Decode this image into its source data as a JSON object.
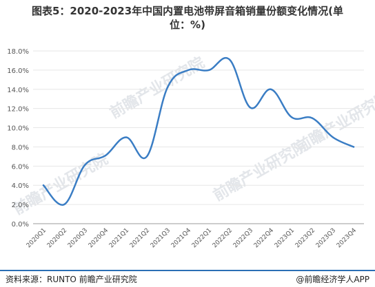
{
  "title_line1": "图表5：2020-2023年中国内置电池带屏音箱销量份额变化情况(单",
  "title_line2": "位：%)",
  "source": "资料来源：RUNTO 前瞻产业研究院",
  "brand": "@前瞻经济学人APP",
  "watermark": "前瞻产业研究院",
  "colors": {
    "line": "#3a7dc4",
    "grid": "#e6e6e6",
    "axis": "#999999",
    "footer_rule": "#2a6fb4"
  },
  "chart_data": {
    "type": "line",
    "title": "图表5：2020-2023年中国内置电池带屏音箱销量份额变化情况(单位：%)",
    "categories": [
      "2020Q1",
      "2020Q2",
      "2020Q3",
      "2020Q4",
      "2021Q1",
      "2021Q2",
      "2021Q3",
      "2021Q4",
      "2022Q1",
      "2022Q2",
      "2022Q3",
      "2022Q4",
      "2023Q1",
      "2023Q2",
      "2023Q3",
      "2023Q4"
    ],
    "series": [
      {
        "values": [
          4.0,
          2.0,
          6.1,
          7.1,
          9.0,
          7.0,
          14.2,
          16.0,
          16.0,
          17.1,
          12.1,
          14.0,
          11.1,
          11.0,
          9.0,
          8.0
        ]
      }
    ],
    "yticks": [
      "0.0%",
      "2.0%",
      "4.0%",
      "6.0%",
      "8.0%",
      "10.0%",
      "12.0%",
      "14.0%",
      "16.0%",
      "18.0%"
    ],
    "ylim": [
      0,
      18
    ],
    "grid": true,
    "legend": "none"
  }
}
